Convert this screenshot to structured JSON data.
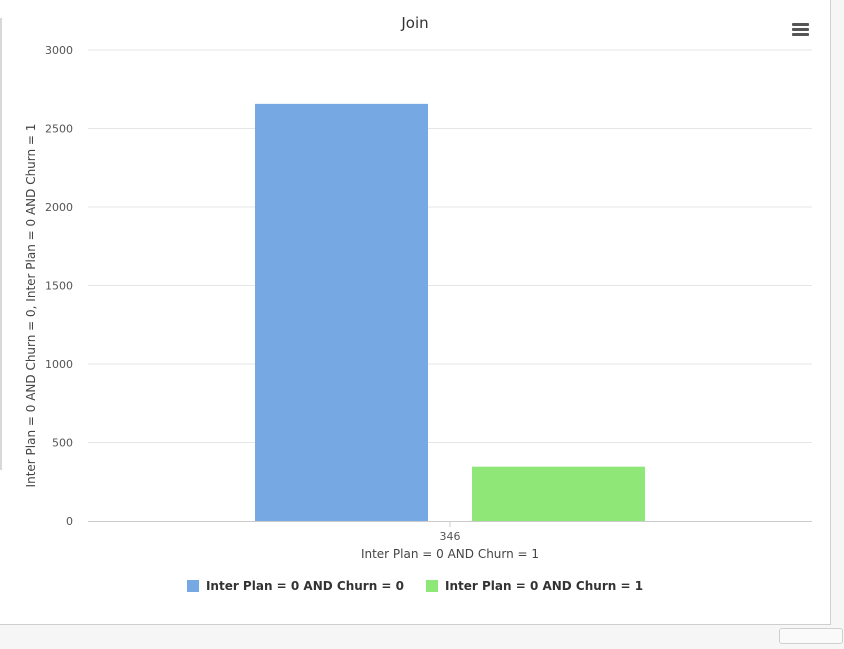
{
  "chart_data": {
    "type": "bar",
    "title": "Join",
    "xlabel": "Inter Plan = 0 AND Churn = 1",
    "ylabel": "Inter Plan = 0 AND Churn = 0, Inter Plan = 0 AND Churn = 1",
    "categories": [
      "346"
    ],
    "ylim": [
      0,
      3000
    ],
    "yticks": [
      "0",
      "500",
      "1000",
      "1500",
      "2000",
      "2500",
      "3000"
    ],
    "grid": true,
    "legend_position": "bottom-center",
    "series": [
      {
        "name": "Inter Plan = 0 AND Churn = 0",
        "values": [
          2657
        ],
        "color": "#76a9e4"
      },
      {
        "name": "Inter Plan = 0 AND Churn = 1",
        "values": [
          346
        ],
        "color": "#8ee777"
      }
    ]
  },
  "ui": {
    "menu_icon": "hamburger-icon"
  }
}
